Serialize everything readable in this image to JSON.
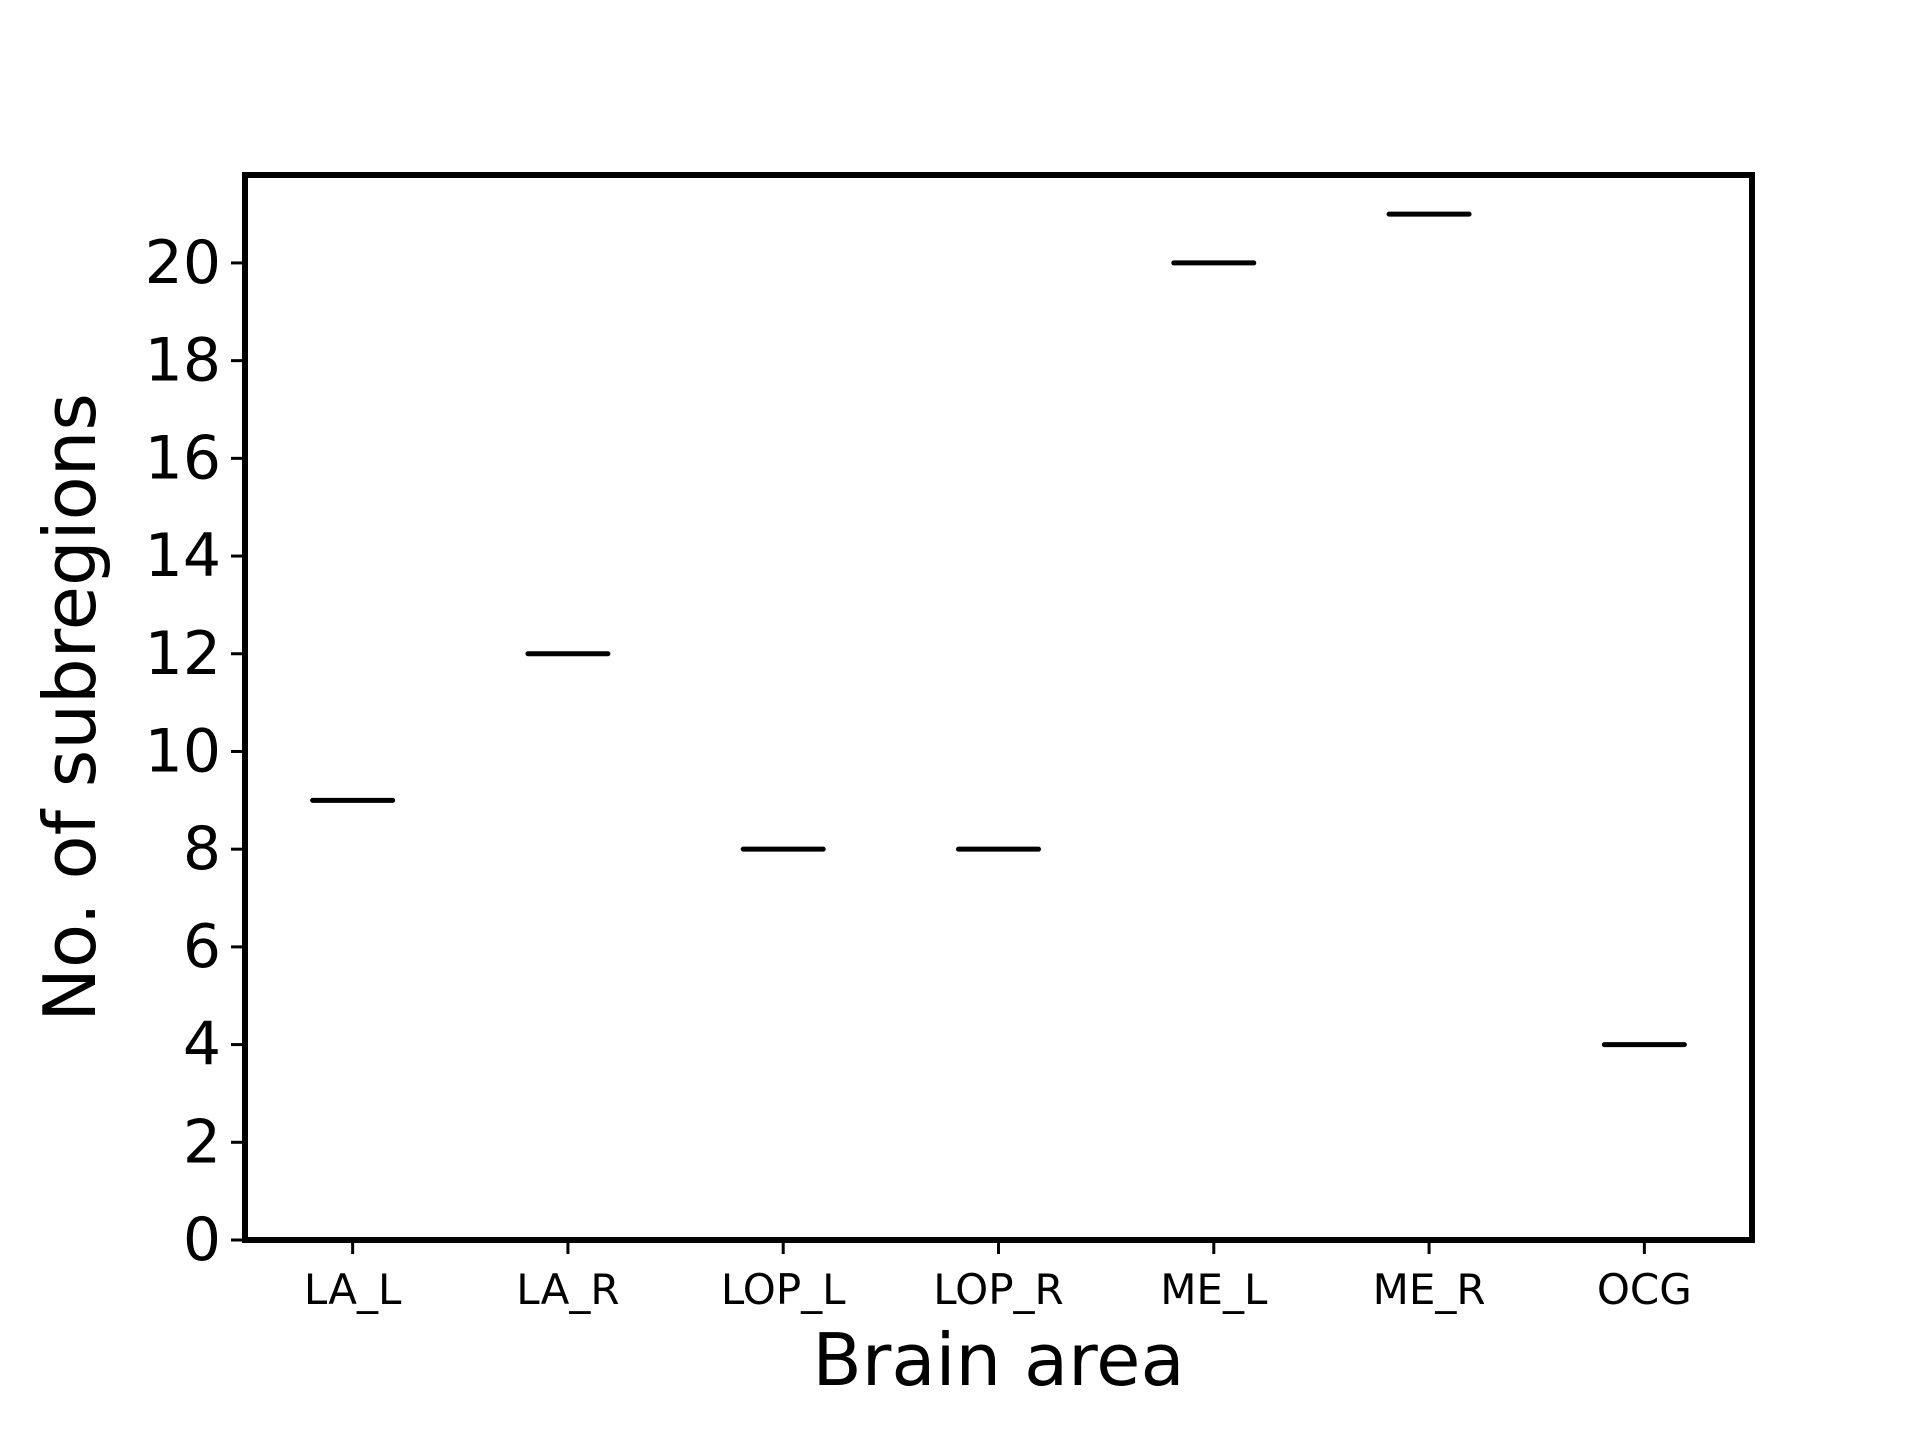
{
  "chart_data": {
    "type": "bar",
    "categories": [
      "LA_L",
      "LA_R",
      "LOP_L",
      "LOP_R",
      "ME_L",
      "ME_R",
      "OCG"
    ],
    "values": [
      9,
      12,
      8,
      8,
      20,
      21,
      4
    ],
    "xlabel": "Brain area",
    "ylabel": "No. of subregions",
    "ylim": [
      0,
      21.8
    ],
    "yticks": [
      0,
      2,
      4,
      6,
      8,
      10,
      12,
      14,
      16,
      18,
      20
    ],
    "grid": false,
    "legend": false,
    "mark_color": "#000000"
  }
}
